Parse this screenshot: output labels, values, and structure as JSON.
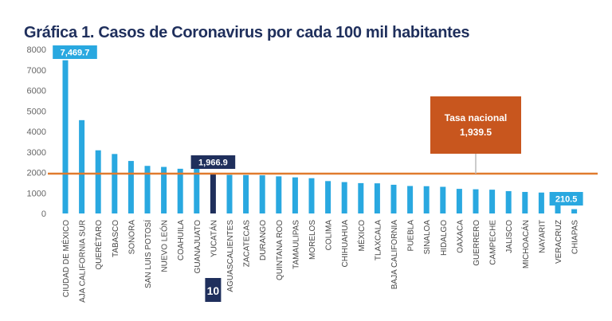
{
  "chart_data": {
    "type": "bar",
    "title": "Gráfica 1. Casos de Coronavirus por cada 100 mil habitantes",
    "ylim": [
      0,
      8000
    ],
    "yticks": [
      0,
      1000,
      2000,
      3000,
      4000,
      5000,
      6000,
      7000,
      8000
    ],
    "grid": false,
    "categories": [
      "CIUDAD DE MÉXICO",
      "AJA CALIFORNIA SUR",
      "QUERÉTARO",
      "TABASCO",
      "SONORA",
      "SAN LUIS POTOSÍ",
      "NUEVO LEÓN",
      "COAHUILA",
      "GUANAJUATO",
      "YUCATÁN",
      "AGUASCALIENTES",
      "ZACATECAS",
      "DURANGO",
      "QUINTANA ROO",
      "TAMAULIPAS",
      "MORELOS",
      "COLIMA",
      "CHIHUAHUA",
      "MÉXICO",
      "TLAXCALA",
      "BAJA CALIFORNIA",
      "PUEBLA",
      "SINALOA",
      "HIDALGO",
      "OAXACA",
      "GUERRERO",
      "CAMPECHE",
      "JALISCO",
      "MICHOACÁN",
      "NAYARIT",
      "VERACRUZ",
      "CHIAPAS"
    ],
    "values": [
      7469.7,
      4550,
      3080,
      2900,
      2560,
      2320,
      2270,
      2180,
      2300,
      1966.9,
      1880,
      1870,
      1860,
      1810,
      1760,
      1720,
      1580,
      1530,
      1480,
      1470,
      1400,
      1340,
      1330,
      1300,
      1200,
      1180,
      1160,
      1090,
      1050,
      1020,
      800,
      210.5
    ],
    "highlight_category": "YUCATÁN",
    "bar_color": "#29a8e0",
    "highlight_color": "#1f2f5c",
    "data_labels": [
      {
        "category": "CIUDAD DE MÉXICO",
        "text": "7,469.7"
      },
      {
        "category": "YUCATÁN",
        "text": "1,966.9"
      },
      {
        "category": "CHIAPAS",
        "text": "210.5"
      }
    ],
    "rank_label": {
      "category": "YUCATÁN",
      "text": "10"
    },
    "reference_line": {
      "value": 1939.5,
      "label_line1": "Tasa nacional",
      "label_line2": "1,939.5",
      "color": "#e07b2e",
      "box_color": "#c8561e"
    }
  }
}
